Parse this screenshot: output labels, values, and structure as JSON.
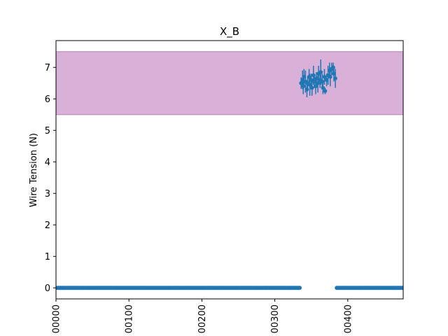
{
  "chart_data": {
    "type": "scatter",
    "title": "X_B",
    "xlabel": "",
    "ylabel": "Wire Tension (N)",
    "xlim": [
      0,
      476
    ],
    "ylim": [
      -0.35,
      7.85
    ],
    "yticks": [
      0,
      1,
      2,
      3,
      4,
      5,
      6,
      7
    ],
    "yticklabels": [
      "0",
      "1",
      "2",
      "3",
      "4",
      "5",
      "6",
      "7"
    ],
    "xticks": [
      0,
      100,
      200,
      300,
      400
    ],
    "xticklabels": [
      "00000",
      "00100",
      "00200",
      "00300",
      "00400"
    ],
    "grid": false,
    "band": {
      "y_min": 5.5,
      "y_max": 7.5,
      "color": "#d8b0d8",
      "edge_color": "#c48cc4"
    },
    "series_color": "#1f77b4",
    "zero_segments": [
      {
        "x_start": 0,
        "x_end": 335,
        "step": 2,
        "y": 0
      },
      {
        "x_start": 385,
        "x_end": 476,
        "step": 2,
        "y": 0
      }
    ],
    "tension_points": [
      {
        "x": 336,
        "y": 6.5,
        "err": 0.18
      },
      {
        "x": 338,
        "y": 6.6,
        "err": 0.3
      },
      {
        "x": 339,
        "y": 6.4,
        "err": 0.25
      },
      {
        "x": 340,
        "y": 6.7,
        "err": 0.25
      },
      {
        "x": 342,
        "y": 6.55,
        "err": 0.35
      },
      {
        "x": 344,
        "y": 6.3,
        "err": 0.25
      },
      {
        "x": 345,
        "y": 6.5,
        "err": 0.2
      },
      {
        "x": 347,
        "y": 6.7,
        "err": 0.25
      },
      {
        "x": 348,
        "y": 6.45,
        "err": 0.35
      },
      {
        "x": 350,
        "y": 6.6,
        "err": 0.2
      },
      {
        "x": 351,
        "y": 6.35,
        "err": 0.25
      },
      {
        "x": 353,
        "y": 6.75,
        "err": 0.3
      },
      {
        "x": 354,
        "y": 6.55,
        "err": 0.2
      },
      {
        "x": 356,
        "y": 6.4,
        "err": 0.25
      },
      {
        "x": 357,
        "y": 6.65,
        "err": 0.2
      },
      {
        "x": 359,
        "y": 6.5,
        "err": 0.3
      },
      {
        "x": 360,
        "y": 6.8,
        "err": 0.25
      },
      {
        "x": 362,
        "y": 6.6,
        "err": 0.25
      },
      {
        "x": 363,
        "y": 6.85,
        "err": 0.4
      },
      {
        "x": 365,
        "y": 6.55,
        "err": 0.25
      },
      {
        "x": 366,
        "y": 6.35,
        "err": 0.2
      },
      {
        "x": 368,
        "y": 6.7,
        "err": 0.25
      },
      {
        "x": 369,
        "y": 6.25,
        "err": 0.1
      },
      {
        "x": 371,
        "y": 6.6,
        "err": 0.2
      },
      {
        "x": 373,
        "y": 6.75,
        "err": 0.3
      },
      {
        "x": 375,
        "y": 6.9,
        "err": 0.25
      },
      {
        "x": 376,
        "y": 6.7,
        "err": 0.3
      },
      {
        "x": 378,
        "y": 6.95,
        "err": 0.2
      },
      {
        "x": 380,
        "y": 7.0,
        "err": 0.15
      },
      {
        "x": 381,
        "y": 6.8,
        "err": 0.25
      },
      {
        "x": 383,
        "y": 6.65,
        "err": 0.3
      }
    ]
  }
}
